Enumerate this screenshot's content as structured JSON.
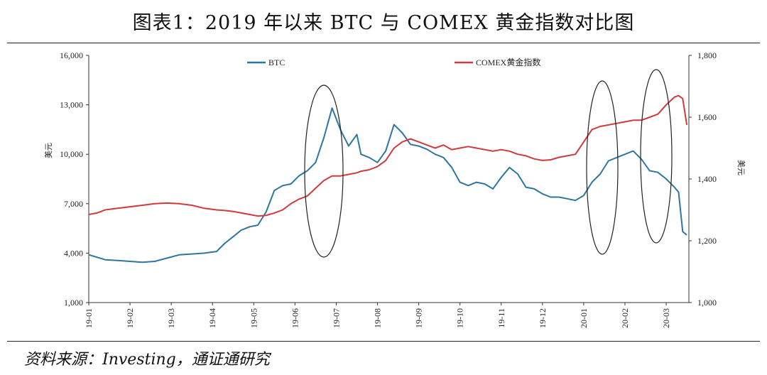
{
  "title": "图表1：2019 年以来 BTC 与 COMEX 黄金指数对比图",
  "source": "资料来源：Investing，通证通研究",
  "chart_data": {
    "type": "line",
    "ylabel_left": "美元",
    "ylabel_right": "美元",
    "ylim_left": [
      1000,
      16000
    ],
    "yticks_left": [
      "1,000",
      "4,000",
      "7,000",
      "10,000",
      "13,000",
      "16,000"
    ],
    "ylim_right": [
      1000,
      1800
    ],
    "yticks_right": [
      "1,000",
      "1,200",
      "1,400",
      "1,600",
      "1,800"
    ],
    "x_ticks": [
      "19-01",
      "19-02",
      "19-03",
      "19-04",
      "19-05",
      "19-06",
      "19-07",
      "19-08",
      "19-09",
      "19-10",
      "19-11",
      "19-12",
      "20-01",
      "20-02",
      "20-03"
    ],
    "x_range": [
      0,
      14.55
    ],
    "grid": false,
    "legend_placement": "top",
    "series": [
      {
        "name": "BTC",
        "axis": "left",
        "color": "#2E75A0",
        "x": [
          0,
          0.2,
          0.4,
          0.7,
          1.0,
          1.3,
          1.6,
          1.9,
          2.2,
          2.5,
          2.8,
          3.1,
          3.3,
          3.5,
          3.7,
          3.9,
          4.1,
          4.3,
          4.5,
          4.7,
          4.9,
          5.1,
          5.3,
          5.5,
          5.7,
          5.9,
          6.1,
          6.3,
          6.5,
          6.6,
          6.8,
          7.0,
          7.2,
          7.4,
          7.6,
          7.8,
          8.0,
          8.2,
          8.4,
          8.6,
          8.8,
          9.0,
          9.2,
          9.4,
          9.6,
          9.8,
          10.0,
          10.2,
          10.4,
          10.6,
          10.8,
          11.0,
          11.2,
          11.4,
          11.6,
          11.8,
          12.0,
          12.2,
          12.4,
          12.6,
          12.8,
          13.0,
          13.2,
          13.4,
          13.6,
          13.8,
          14.0,
          14.2,
          14.3,
          14.4,
          14.5
        ],
        "y": [
          3900,
          3750,
          3600,
          3550,
          3500,
          3450,
          3500,
          3700,
          3900,
          3950,
          4000,
          4100,
          4600,
          5000,
          5400,
          5600,
          5700,
          6500,
          7800,
          8100,
          8200,
          8700,
          9000,
          9500,
          11000,
          12800,
          11500,
          10500,
          11200,
          10000,
          9800,
          9500,
          10200,
          11800,
          11300,
          10600,
          10500,
          10300,
          10000,
          9800,
          9200,
          8300,
          8100,
          8300,
          8200,
          7900,
          8600,
          9200,
          8800,
          8000,
          7900,
          7600,
          7400,
          7400,
          7300,
          7200,
          7500,
          8300,
          8800,
          9600,
          9800,
          10000,
          10200,
          9700,
          9000,
          8900,
          8500,
          8000,
          7700,
          5300,
          5100
        ]
      },
      {
        "name": "COMEX黄金指数",
        "axis": "right",
        "color": "#D03A3A",
        "x": [
          0,
          0.2,
          0.4,
          0.7,
          1.0,
          1.3,
          1.6,
          1.9,
          2.2,
          2.5,
          2.8,
          3.1,
          3.3,
          3.5,
          3.7,
          3.9,
          4.1,
          4.3,
          4.5,
          4.7,
          4.9,
          5.1,
          5.3,
          5.5,
          5.7,
          5.9,
          6.1,
          6.3,
          6.5,
          6.6,
          6.8,
          7.0,
          7.2,
          7.4,
          7.6,
          7.8,
          8.0,
          8.2,
          8.4,
          8.6,
          8.8,
          9.0,
          9.2,
          9.4,
          9.6,
          9.8,
          10.0,
          10.2,
          10.4,
          10.6,
          10.8,
          11.0,
          11.2,
          11.4,
          11.6,
          11.8,
          12.0,
          12.2,
          12.4,
          12.6,
          12.8,
          13.0,
          13.2,
          13.4,
          13.6,
          13.8,
          14.0,
          14.2,
          14.3,
          14.4,
          14.5
        ],
        "y": [
          1285,
          1290,
          1300,
          1305,
          1310,
          1315,
          1320,
          1322,
          1320,
          1315,
          1305,
          1300,
          1298,
          1295,
          1290,
          1285,
          1280,
          1282,
          1290,
          1300,
          1320,
          1335,
          1345,
          1370,
          1395,
          1410,
          1410,
          1415,
          1420,
          1425,
          1430,
          1440,
          1460,
          1500,
          1520,
          1530,
          1520,
          1510,
          1500,
          1510,
          1495,
          1500,
          1505,
          1500,
          1495,
          1490,
          1495,
          1490,
          1480,
          1475,
          1465,
          1460,
          1462,
          1470,
          1475,
          1480,
          1520,
          1560,
          1570,
          1575,
          1580,
          1585,
          1590,
          1590,
          1600,
          1610,
          1640,
          1665,
          1670,
          1660,
          1575
        ]
      }
    ]
  }
}
